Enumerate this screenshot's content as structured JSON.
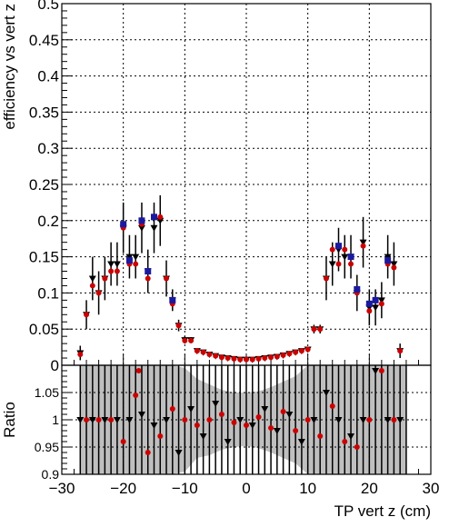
{
  "chart_data": [
    {
      "type": "scatter",
      "panel": "main",
      "ylabel": "efficiency vs vert z",
      "xlim": [
        -30,
        30
      ],
      "ylim": [
        0,
        0.5
      ],
      "x_ticks": [
        -30,
        -20,
        -10,
        0,
        10,
        20,
        30
      ],
      "y_ticks": [
        "0",
        "0.05",
        "0.1",
        "0.15",
        "0.2",
        "0.25",
        "0.3",
        "0.35",
        "0.4",
        "0.45",
        "0.5"
      ],
      "grid": true,
      "colors": {
        "black": "#000000",
        "red": "#cc0000",
        "blue": "#1a1aa0"
      },
      "series": [
        {
          "marker": "inverted-triangle",
          "color": "#000000",
          "points": [
            {
              "x": -27,
              "y": 0.017,
              "err": 0.01
            },
            {
              "x": -26,
              "y": 0.07,
              "err": 0.02
            },
            {
              "x": -25,
              "y": 0.12,
              "err": 0.03
            },
            {
              "x": -24,
              "y": 0.1,
              "err": 0.03
            },
            {
              "x": -23,
              "y": 0.12,
              "err": 0.03
            },
            {
              "x": -22,
              "y": 0.14,
              "err": 0.03
            },
            {
              "x": -21,
              "y": 0.14,
              "err": 0.03
            },
            {
              "x": -20,
              "y": 0.19,
              "err": 0.035
            },
            {
              "x": -19,
              "y": 0.15,
              "err": 0.03
            },
            {
              "x": -18,
              "y": 0.15,
              "err": 0.03
            },
            {
              "x": -17,
              "y": 0.19,
              "err": 0.035
            },
            {
              "x": -16,
              "y": 0.13,
              "err": 0.03
            },
            {
              "x": -15,
              "y": 0.19,
              "err": 0.035
            },
            {
              "x": -14,
              "y": 0.2,
              "err": 0.035
            },
            {
              "x": -13,
              "y": 0.12,
              "err": 0.025
            },
            {
              "x": -12,
              "y": 0.09,
              "err": 0.015
            },
            {
              "x": -11,
              "y": 0.055,
              "err": 0.008
            },
            {
              "x": -10,
              "y": 0.035,
              "err": 0.005
            },
            {
              "x": -9,
              "y": 0.035,
              "err": 0.004
            },
            {
              "x": -8,
              "y": 0.02,
              "err": 0.003
            },
            {
              "x": -7,
              "y": 0.018,
              "err": 0.003
            },
            {
              "x": -6,
              "y": 0.015,
              "err": 0.002
            },
            {
              "x": -5,
              "y": 0.013,
              "err": 0.002
            },
            {
              "x": -4,
              "y": 0.011,
              "err": 0.002
            },
            {
              "x": -3,
              "y": 0.01,
              "err": 0.002
            },
            {
              "x": -2,
              "y": 0.009,
              "err": 0.002
            },
            {
              "x": -1,
              "y": 0.008,
              "err": 0.002
            },
            {
              "x": 0,
              "y": 0.008,
              "err": 0.002
            },
            {
              "x": 1,
              "y": 0.008,
              "err": 0.002
            },
            {
              "x": 2,
              "y": 0.009,
              "err": 0.002
            },
            {
              "x": 3,
              "y": 0.01,
              "err": 0.002
            },
            {
              "x": 4,
              "y": 0.011,
              "err": 0.002
            },
            {
              "x": 5,
              "y": 0.012,
              "err": 0.002
            },
            {
              "x": 6,
              "y": 0.014,
              "err": 0.002
            },
            {
              "x": 7,
              "y": 0.016,
              "err": 0.003
            },
            {
              "x": 8,
              "y": 0.018,
              "err": 0.003
            },
            {
              "x": 9,
              "y": 0.02,
              "err": 0.003
            },
            {
              "x": 10,
              "y": 0.022,
              "err": 0.003
            },
            {
              "x": 11,
              "y": 0.05,
              "err": 0.006
            },
            {
              "x": 12,
              "y": 0.05,
              "err": 0.006
            },
            {
              "x": 13,
              "y": 0.12,
              "err": 0.03
            },
            {
              "x": 14,
              "y": 0.14,
              "err": 0.03
            },
            {
              "x": 15,
              "y": 0.16,
              "err": 0.03
            },
            {
              "x": 16,
              "y": 0.15,
              "err": 0.03
            },
            {
              "x": 17,
              "y": 0.15,
              "err": 0.03
            },
            {
              "x": 18,
              "y": 0.1,
              "err": 0.025
            },
            {
              "x": 19,
              "y": 0.17,
              "err": 0.035
            },
            {
              "x": 20,
              "y": 0.08,
              "err": 0.025
            },
            {
              "x": 21,
              "y": 0.08,
              "err": 0.025
            },
            {
              "x": 22,
              "y": 0.09,
              "err": 0.025
            },
            {
              "x": 23,
              "y": 0.15,
              "err": 0.03
            },
            {
              "x": 24,
              "y": 0.14,
              "err": 0.03
            },
            {
              "x": 25,
              "y": 0.02,
              "err": 0.01
            }
          ]
        },
        {
          "marker": "circle",
          "color": "#cc0000",
          "points": [
            {
              "x": -27,
              "y": 0.015
            },
            {
              "x": -26,
              "y": 0.07
            },
            {
              "x": -25,
              "y": 0.11
            },
            {
              "x": -24,
              "y": 0.1
            },
            {
              "x": -23,
              "y": 0.12
            },
            {
              "x": -22,
              "y": 0.13
            },
            {
              "x": -21,
              "y": 0.13
            },
            {
              "x": -20,
              "y": 0.19
            },
            {
              "x": -19,
              "y": 0.14
            },
            {
              "x": -18,
              "y": 0.14
            },
            {
              "x": -17,
              "y": 0.195
            },
            {
              "x": -16,
              "y": 0.12
            },
            {
              "x": -15,
              "y": 0.205
            },
            {
              "x": -14,
              "y": 0.205
            },
            {
              "x": -13,
              "y": 0.12
            },
            {
              "x": -12,
              "y": 0.085
            },
            {
              "x": -11,
              "y": 0.055
            },
            {
              "x": -10,
              "y": 0.034
            },
            {
              "x": -9,
              "y": 0.034
            },
            {
              "x": -8,
              "y": 0.02
            },
            {
              "x": -7,
              "y": 0.018
            },
            {
              "x": -6,
              "y": 0.015
            },
            {
              "x": -5,
              "y": 0.013
            },
            {
              "x": -4,
              "y": 0.011
            },
            {
              "x": -3,
              "y": 0.01
            },
            {
              "x": -2,
              "y": 0.009
            },
            {
              "x": -1,
              "y": 0.008
            },
            {
              "x": 0,
              "y": 0.008
            },
            {
              "x": 1,
              "y": 0.008
            },
            {
              "x": 2,
              "y": 0.009
            },
            {
              "x": 3,
              "y": 0.01
            },
            {
              "x": 4,
              "y": 0.011
            },
            {
              "x": 5,
              "y": 0.012
            },
            {
              "x": 6,
              "y": 0.014
            },
            {
              "x": 7,
              "y": 0.016
            },
            {
              "x": 8,
              "y": 0.018
            },
            {
              "x": 9,
              "y": 0.02
            },
            {
              "x": 10,
              "y": 0.022
            },
            {
              "x": 11,
              "y": 0.05
            },
            {
              "x": 12,
              "y": 0.05
            },
            {
              "x": 13,
              "y": 0.12
            },
            {
              "x": 14,
              "y": 0.16
            },
            {
              "x": 15,
              "y": 0.14
            },
            {
              "x": 16,
              "y": 0.16
            },
            {
              "x": 17,
              "y": 0.14
            },
            {
              "x": 18,
              "y": 0.1
            },
            {
              "x": 19,
              "y": 0.165
            },
            {
              "x": 20,
              "y": 0.075
            },
            {
              "x": 21,
              "y": 0.09
            },
            {
              "x": 22,
              "y": 0.085
            },
            {
              "x": 23,
              "y": 0.14
            },
            {
              "x": 24,
              "y": 0.135
            },
            {
              "x": 25,
              "y": 0.02
            }
          ]
        },
        {
          "marker": "square",
          "color": "#1a1aa0",
          "points": [
            {
              "x": -20,
              "y": 0.195
            },
            {
              "x": -19,
              "y": 0.145
            },
            {
              "x": -17,
              "y": 0.2
            },
            {
              "x": -16,
              "y": 0.13
            },
            {
              "x": -15,
              "y": 0.205
            },
            {
              "x": -12,
              "y": 0.09
            },
            {
              "x": 15,
              "y": 0.165
            },
            {
              "x": 17,
              "y": 0.15
            },
            {
              "x": 18,
              "y": 0.105
            },
            {
              "x": 20,
              "y": 0.085
            },
            {
              "x": 21,
              "y": 0.09
            },
            {
              "x": 23,
              "y": 0.145
            }
          ]
        }
      ]
    },
    {
      "type": "scatter",
      "panel": "ratio",
      "xlabel": "TP vert z (cm)",
      "ylabel": "Ratio",
      "xlim": [
        -30,
        30
      ],
      "ylim": [
        0.9,
        1.1
      ],
      "x_ticks": [
        "−30",
        "−20",
        "−10",
        "0",
        "10",
        "20",
        "30"
      ],
      "y_ticks": [
        "0.9",
        "0.95",
        "1",
        "1.05"
      ],
      "grid": true,
      "band_color": "#bfbfbf",
      "band": [
        {
          "x": -27,
          "lo": 0.9,
          "hi": 1.1
        },
        {
          "x": -14,
          "lo": 0.9,
          "hi": 1.1
        },
        {
          "x": -12,
          "lo": 0.9,
          "hi": 1.1
        },
        {
          "x": -10,
          "lo": 0.905,
          "hi": 1.095
        },
        {
          "x": -8,
          "lo": 0.93,
          "hi": 1.075
        },
        {
          "x": -6,
          "lo": 0.935,
          "hi": 1.065
        },
        {
          "x": -4,
          "lo": 0.945,
          "hi": 1.055
        },
        {
          "x": -2,
          "lo": 0.95,
          "hi": 1.05
        },
        {
          "x": 0,
          "lo": 0.952,
          "hi": 1.05
        },
        {
          "x": 2,
          "lo": 0.948,
          "hi": 1.052
        },
        {
          "x": 4,
          "lo": 0.94,
          "hi": 1.06
        },
        {
          "x": 6,
          "lo": 0.93,
          "hi": 1.07
        },
        {
          "x": 8,
          "lo": 0.92,
          "hi": 1.08
        },
        {
          "x": 10,
          "lo": 0.9,
          "hi": 1.1
        },
        {
          "x": 26,
          "lo": 0.9,
          "hi": 1.1
        }
      ],
      "series": [
        {
          "marker": "inverted-triangle",
          "color": "#000000",
          "points": [
            {
              "x": -27,
              "y": 1.0
            },
            {
              "x": -25,
              "y": 1.0
            },
            {
              "x": -23,
              "y": 1.0
            },
            {
              "x": -21,
              "y": 1.0
            },
            {
              "x": -19,
              "y": 1.0
            },
            {
              "x": -17,
              "y": 1.01
            },
            {
              "x": -15,
              "y": 0.99
            },
            {
              "x": -13,
              "y": 1.0
            },
            {
              "x": -11,
              "y": 0.94
            },
            {
              "x": -9,
              "y": 1.02
            },
            {
              "x": -7,
              "y": 0.97
            },
            {
              "x": -5,
              "y": 1.03
            },
            {
              "x": -3,
              "y": 0.96
            },
            {
              "x": -1,
              "y": 1.0
            },
            {
              "x": 1,
              "y": 0.99
            },
            {
              "x": 3,
              "y": 1.02
            },
            {
              "x": 5,
              "y": 0.98
            },
            {
              "x": 7,
              "y": 1.01
            },
            {
              "x": 9,
              "y": 0.96
            },
            {
              "x": 11,
              "y": 1.0
            },
            {
              "x": 13,
              "y": 1.05
            },
            {
              "x": 15,
              "y": 1.0
            },
            {
              "x": 17,
              "y": 0.97
            },
            {
              "x": 19,
              "y": 1.0
            },
            {
              "x": 21,
              "y": 1.09
            },
            {
              "x": 23,
              "y": 1.0
            },
            {
              "x": 25,
              "y": 1.0
            }
          ]
        },
        {
          "marker": "circle",
          "color": "#cc0000",
          "points": [
            {
              "x": -26,
              "y": 1.0
            },
            {
              "x": -24,
              "y": 1.0
            },
            {
              "x": -22,
              "y": 1.0
            },
            {
              "x": -20,
              "y": 0.96
            },
            {
              "x": -18,
              "y": 1.045
            },
            {
              "x": -17.5,
              "y": 1.09
            },
            {
              "x": -16,
              "y": 0.94
            },
            {
              "x": -14,
              "y": 0.97
            },
            {
              "x": -12,
              "y": 1.02
            },
            {
              "x": -10,
              "y": 1.0
            },
            {
              "x": -8,
              "y": 0.99
            },
            {
              "x": -6,
              "y": 1.0
            },
            {
              "x": -4,
              "y": 1.01
            },
            {
              "x": -2,
              "y": 0.995
            },
            {
              "x": 0,
              "y": 0.99
            },
            {
              "x": 2,
              "y": 1.005
            },
            {
              "x": 4,
              "y": 0.985
            },
            {
              "x": 6,
              "y": 1.015
            },
            {
              "x": 8,
              "y": 0.98
            },
            {
              "x": 10,
              "y": 1.0
            },
            {
              "x": 12,
              "y": 0.97
            },
            {
              "x": 14,
              "y": 1.025
            },
            {
              "x": 16,
              "y": 0.96
            },
            {
              "x": 18,
              "y": 0.95
            },
            {
              "x": 20,
              "y": 1.0
            },
            {
              "x": 22,
              "y": 1.09
            },
            {
              "x": 24,
              "y": 1.0
            }
          ]
        }
      ]
    }
  ]
}
